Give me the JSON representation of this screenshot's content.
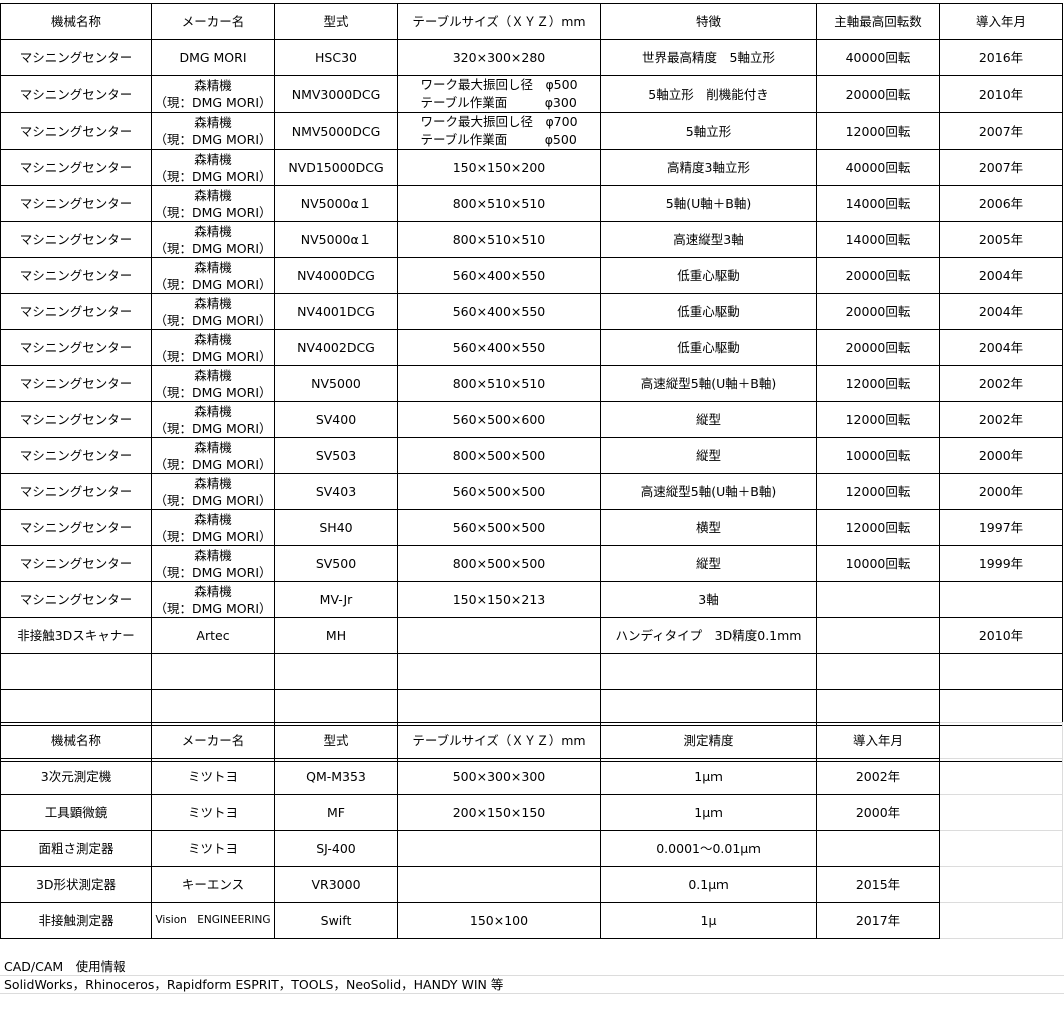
{
  "machining_table": {
    "headers": [
      "機械名称",
      "メーカー名",
      "型式",
      "テーブルサイズ（ＸＹＺ）mm",
      "特徴",
      "主軸最高回転数",
      "導入年月"
    ],
    "rows": [
      {
        "name": "マシニングセンター",
        "maker1": "DMG MORI",
        "maker2": "",
        "model": "HSC30",
        "size1": "320×300×280",
        "size2": "",
        "feature": "世界最高精度　5軸立形",
        "rpm": "40000回転",
        "year": "2016年"
      },
      {
        "name": "マシニングセンター",
        "maker1": "森精機",
        "maker2": "（現：DMG MORI）",
        "model": "NMV3000DCG",
        "size1": "ワーク最大振回し径　φ500",
        "size2": "テーブル作業面　　　φ300",
        "feature": "5軸立形　削機能付き",
        "rpm": "20000回転",
        "year": "2010年"
      },
      {
        "name": "マシニングセンター",
        "maker1": "森精機",
        "maker2": "（現：DMG MORI）",
        "model": "NMV5000DCG",
        "size1": "ワーク最大振回し径　φ700",
        "size2": "テーブル作業面　　　φ500",
        "feature": "5軸立形",
        "rpm": "12000回転",
        "year": "2007年"
      },
      {
        "name": "マシニングセンター",
        "maker1": "森精機",
        "maker2": "（現：DMG MORI）",
        "model": "NVD15000DCG",
        "size1": "150×150×200",
        "size2": "",
        "feature": "高精度3軸立形",
        "rpm": "40000回転",
        "year": "2007年"
      },
      {
        "name": "マシニングセンター",
        "maker1": "森精機",
        "maker2": "（現：DMG MORI）",
        "model": "NV5000α１",
        "size1": "800×510×510",
        "size2": "",
        "feature": "5軸(U軸＋B軸)",
        "rpm": "14000回転",
        "year": "2006年"
      },
      {
        "name": "マシニングセンター",
        "maker1": "森精機",
        "maker2": "（現：DMG MORI）",
        "model": "NV5000α１",
        "size1": "800×510×510",
        "size2": "",
        "feature": "高速縦型3軸",
        "rpm": "14000回転",
        "year": "2005年"
      },
      {
        "name": "マシニングセンター",
        "maker1": "森精機",
        "maker2": "（現：DMG MORI）",
        "model": "NV4000DCG",
        "size1": "560×400×550",
        "size2": "",
        "feature": "低重心駆動",
        "rpm": "20000回転",
        "year": "2004年"
      },
      {
        "name": "マシニングセンター",
        "maker1": "森精機",
        "maker2": "（現：DMG MORI）",
        "model": "NV4001DCG",
        "size1": "560×400×550",
        "size2": "",
        "feature": "低重心駆動",
        "rpm": "20000回転",
        "year": "2004年"
      },
      {
        "name": "マシニングセンター",
        "maker1": "森精機",
        "maker2": "（現：DMG MORI）",
        "model": "NV4002DCG",
        "size1": "560×400×550",
        "size2": "",
        "feature": "低重心駆動",
        "rpm": "20000回転",
        "year": "2004年"
      },
      {
        "name": "マシニングセンター",
        "maker1": "森精機",
        "maker2": "（現：DMG MORI）",
        "model": "NV5000",
        "size1": "800×510×510",
        "size2": "",
        "feature": "高速縦型5軸(U軸＋B軸)",
        "rpm": "12000回転",
        "year": "2002年"
      },
      {
        "name": "マシニングセンター",
        "maker1": "森精機",
        "maker2": "（現：DMG MORI）",
        "model": "SV400",
        "size1": "560×500×600",
        "size2": "",
        "feature": "縦型",
        "rpm": "12000回転",
        "year": "2002年"
      },
      {
        "name": "マシニングセンター",
        "maker1": "森精機",
        "maker2": "（現：DMG MORI）",
        "model": "SV503",
        "size1": "800×500×500",
        "size2": "",
        "feature": "縦型",
        "rpm": "10000回転",
        "year": "2000年"
      },
      {
        "name": "マシニングセンター",
        "maker1": "森精機",
        "maker2": "（現：DMG MORI）",
        "model": "SV403",
        "size1": "560×500×500",
        "size2": "",
        "feature": "高速縦型5軸(U軸＋B軸)",
        "rpm": "12000回転",
        "year": "2000年"
      },
      {
        "name": "マシニングセンター",
        "maker1": "森精機",
        "maker2": "（現：DMG MORI）",
        "model": "SH40",
        "size1": "560×500×500",
        "size2": "",
        "feature": "横型",
        "rpm": "12000回転",
        "year": "1997年"
      },
      {
        "name": "マシニングセンター",
        "maker1": "森精機",
        "maker2": "（現：DMG MORI）",
        "model": "SV500",
        "size1": "800×500×500",
        "size2": "",
        "feature": "縦型",
        "rpm": "10000回転",
        "year": "1999年"
      },
      {
        "name": "マシニングセンター",
        "maker1": "森精機",
        "maker2": "（現：DMG MORI）",
        "model": "MV-Jr",
        "size1": "150×150×213",
        "size2": "",
        "feature": "3軸",
        "rpm": "",
        "year": ""
      },
      {
        "name": "非接触3Dスキャナー",
        "maker1": "Artec",
        "maker2": "",
        "model": "MH",
        "size1": "",
        "size2": "",
        "feature": "ハンディタイプ　3D精度0.1mm",
        "rpm": "",
        "year": "2010年"
      }
    ]
  },
  "measurement_table": {
    "headers": [
      "機械名称",
      "メーカー名",
      "型式",
      "テーブルサイズ（ＸＹＺ）mm",
      "測定精度",
      "導入年月"
    ],
    "rows": [
      {
        "name": "3次元測定機",
        "maker": "ミツトヨ",
        "model": "QM-M353",
        "size": "500×300×300",
        "accuracy": "1μｍ",
        "year": "2002年"
      },
      {
        "name": "工具顕微鏡",
        "maker": "ミツトヨ",
        "model": "MF",
        "size": "200×150×150",
        "accuracy": "1μｍ",
        "year": "2000年"
      },
      {
        "name": "面粗さ測定器",
        "maker": "ミツトヨ",
        "model": "SJ-400",
        "size": "",
        "accuracy": "0.0001～0.01μｍ",
        "year": ""
      },
      {
        "name": "3D形状測定器",
        "maker": "キーエンス",
        "model": "VR3000",
        "size": "",
        "accuracy": "0.1μｍ",
        "year": "2015年"
      },
      {
        "name": "非接触測定器",
        "maker": "Vision　ENGINEERING",
        "model": "Swift",
        "size": "150×100",
        "accuracy": "1μ",
        "year": "2017年"
      }
    ]
  },
  "notes": {
    "cad_title": "CAD/CAM　使用情報",
    "cad_software": "SolidWorks，Rhinoceros，Rapidform ESPRIT，TOOLS，NeoSolid，HANDY WIN 等"
  }
}
